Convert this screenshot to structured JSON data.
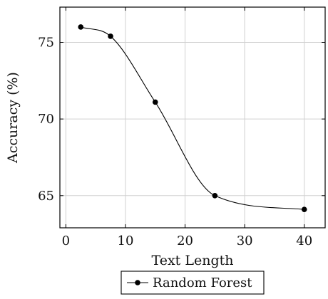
{
  "chart_data": {
    "type": "line",
    "xlabel": "Text Length",
    "ylabel": "Accuracy (%)",
    "xlim": [
      -1,
      43.5
    ],
    "ylim": [
      62.9,
      77.3
    ],
    "xticks": [
      0,
      10,
      20,
      30,
      40
    ],
    "yticks": [
      65,
      70,
      75
    ],
    "grid": true,
    "legend_position": "bottom-outside",
    "series": [
      {
        "name": "Random Forest",
        "color": "#000000",
        "marker": "circle",
        "x": [
          2.5,
          7.5,
          15,
          25,
          40
        ],
        "y": [
          76.0,
          75.4,
          71.1,
          65.0,
          64.1
        ]
      }
    ]
  }
}
